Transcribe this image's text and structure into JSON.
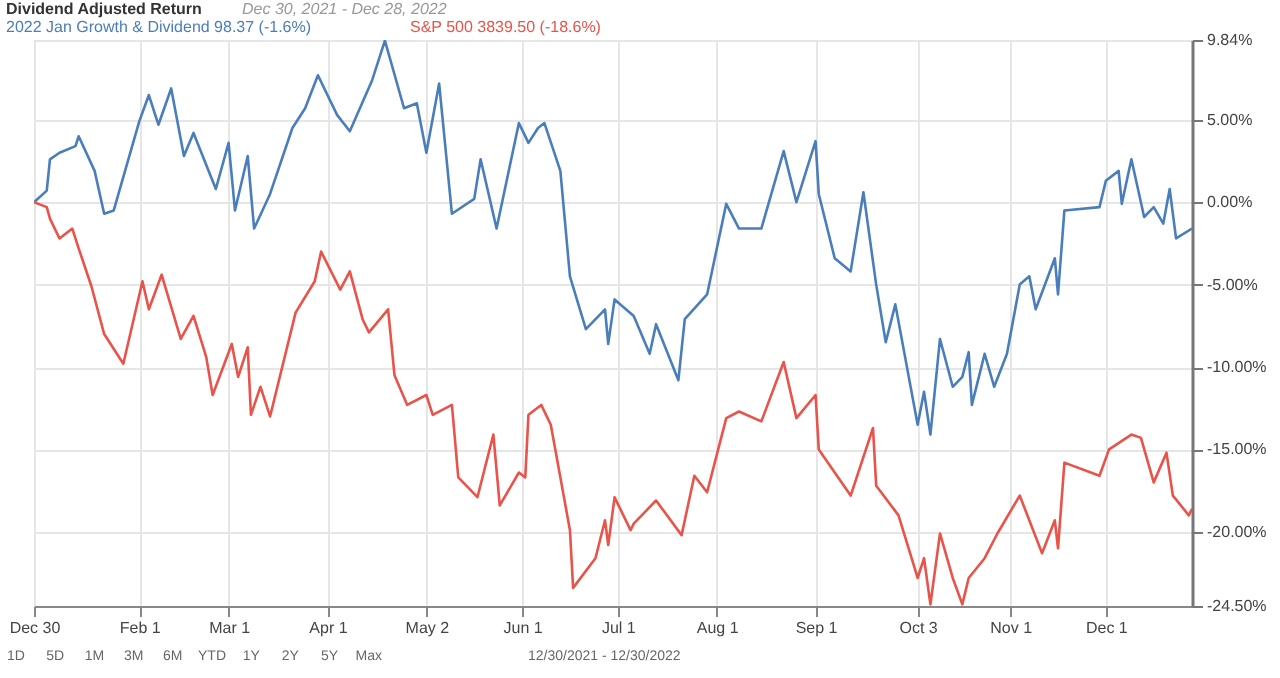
{
  "chart_data": {
    "type": "line",
    "title": "Dividend Adjusted Return",
    "subtitle": "Dec 30, 2021 - Dec 28, 2022",
    "legend": "top left",
    "grid": true,
    "xlim": [
      "2021-12-30",
      "2022-12-28"
    ],
    "xticks": [
      {
        "value": "2021-12-30",
        "label": "Dec 30"
      },
      {
        "value": "2022-02-01",
        "label": "Feb 1"
      },
      {
        "value": "2022-03-01",
        "label": "Mar 1"
      },
      {
        "value": "2022-04-01",
        "label": "Apr 1"
      },
      {
        "value": "2022-05-02",
        "label": "May 2"
      },
      {
        "value": "2022-06-01",
        "label": "Jun 1"
      },
      {
        "value": "2022-07-01",
        "label": "Jul 1"
      },
      {
        "value": "2022-08-01",
        "label": "Aug 1"
      },
      {
        "value": "2022-09-01",
        "label": "Sep 1"
      },
      {
        "value": "2022-10-03",
        "label": "Oct 3"
      },
      {
        "value": "2022-11-01",
        "label": "Nov 1"
      },
      {
        "value": "2022-12-01",
        "label": "Dec 1"
      }
    ],
    "ylim": [
      -24.5,
      9.84
    ],
    "yticks": [
      {
        "value": 9.84,
        "label": "9.84%"
      },
      {
        "value": 5,
        "label": "5.00%"
      },
      {
        "value": 0,
        "label": "0.00%"
      },
      {
        "value": -5,
        "label": "-5.00%"
      },
      {
        "value": -10,
        "label": "-10.00%"
      },
      {
        "value": -15,
        "label": "-15.00%"
      },
      {
        "value": -20,
        "label": "-20.00%"
      },
      {
        "value": -24.5,
        "label": "-24.50%"
      }
    ],
    "annotations": [
      "1D",
      "5D",
      "1M",
      "3M",
      "6M",
      "YTD",
      "1Y",
      "2Y",
      "5Y",
      "Max",
      "12/30/2021 - 12/30/2022"
    ],
    "series": [
      {
        "name": "2022 Jan Growth & Dividend 98.37 (-1.6%)",
        "color": "#4a7ebb",
        "x": [
          "2021-12-30",
          "2022-01-03",
          "2022-01-04",
          "2022-01-07",
          "2022-01-12",
          "2022-01-13",
          "2022-01-18",
          "2022-01-21",
          "2022-01-24",
          "2022-02-01",
          "2022-02-04",
          "2022-02-07",
          "2022-02-11",
          "2022-02-15",
          "2022-02-18",
          "2022-02-25",
          "2022-03-01",
          "2022-03-03",
          "2022-03-07",
          "2022-03-09",
          "2022-03-14",
          "2022-03-21",
          "2022-03-25",
          "2022-03-29",
          "2022-04-04",
          "2022-04-08",
          "2022-04-15",
          "2022-04-19",
          "2022-04-25",
          "2022-04-29",
          "2022-05-02",
          "2022-05-06",
          "2022-05-10",
          "2022-05-17",
          "2022-05-19",
          "2022-05-24",
          "2022-05-31",
          "2022-06-03",
          "2022-06-06",
          "2022-06-08",
          "2022-06-13",
          "2022-06-16",
          "2022-06-21",
          "2022-06-27",
          "2022-06-28",
          "2022-06-30",
          "2022-07-06",
          "2022-07-11",
          "2022-07-13",
          "2022-07-20",
          "2022-07-22",
          "2022-07-29",
          "2022-08-04",
          "2022-08-08",
          "2022-08-15",
          "2022-08-22",
          "2022-08-26",
          "2022-09-01",
          "2022-09-02",
          "2022-09-07",
          "2022-09-12",
          "2022-09-16",
          "2022-09-20",
          "2022-09-23",
          "2022-09-26",
          "2022-10-03",
          "2022-10-05",
          "2022-10-07",
          "2022-10-10",
          "2022-10-14",
          "2022-10-17",
          "2022-10-19",
          "2022-10-20",
          "2022-10-24",
          "2022-10-27",
          "2022-10-31",
          "2022-11-04",
          "2022-11-07",
          "2022-11-09",
          "2022-11-15",
          "2022-11-16",
          "2022-11-18",
          "2022-11-29",
          "2022-12-01",
          "2022-12-05",
          "2022-12-06",
          "2022-12-09",
          "2022-12-13",
          "2022-12-16",
          "2022-12-19",
          "2022-12-21",
          "2022-12-23",
          "2022-12-28"
        ],
        "values": [
          0.0,
          0.7,
          2.6,
          3.0,
          3.4,
          4.0,
          1.9,
          -0.7,
          -0.5,
          4.9,
          6.5,
          4.7,
          6.9,
          2.8,
          4.2,
          0.8,
          3.6,
          -0.5,
          2.8,
          -1.6,
          0.5,
          4.5,
          5.7,
          7.7,
          5.3,
          4.3,
          7.4,
          9.8,
          5.7,
          6.0,
          3.0,
          7.2,
          -0.7,
          0.2,
          2.6,
          -1.6,
          4.8,
          3.6,
          4.5,
          4.8,
          1.9,
          -4.5,
          -7.7,
          -6.5,
          -8.6,
          -5.9,
          -6.9,
          -9.2,
          -7.4,
          -10.8,
          -7.1,
          -5.6,
          -0.1,
          -1.6,
          -1.6,
          3.1,
          0.0,
          3.7,
          0.5,
          -3.4,
          -4.2,
          0.6,
          -5.0,
          -8.5,
          -6.2,
          -13.5,
          -11.5,
          -14.1,
          -8.3,
          -11.2,
          -10.6,
          -9.1,
          -12.3,
          -9.2,
          -11.2,
          -9.2,
          -5.0,
          -4.5,
          -6.5,
          -3.4,
          -5.6,
          -0.5,
          -0.3,
          1.3,
          1.9,
          -0.1,
          2.6,
          -0.9,
          -0.3,
          -1.3,
          0.8,
          -2.2,
          -1.6
        ]
      },
      {
        "name": "S&P 500 3839.50 (-18.6%)",
        "color": "#e8534a",
        "x": [
          "2021-12-30",
          "2022-01-03",
          "2022-01-04",
          "2022-01-07",
          "2022-01-11",
          "2022-01-13",
          "2022-01-17",
          "2022-01-21",
          "2022-01-27",
          "2022-02-02",
          "2022-02-04",
          "2022-02-08",
          "2022-02-14",
          "2022-02-18",
          "2022-02-22",
          "2022-02-24",
          "2022-03-02",
          "2022-03-04",
          "2022-03-07",
          "2022-03-08",
          "2022-03-11",
          "2022-03-14",
          "2022-03-22",
          "2022-03-28",
          "2022-03-30",
          "2022-04-05",
          "2022-04-08",
          "2022-04-12",
          "2022-04-14",
          "2022-04-20",
          "2022-04-22",
          "2022-04-26",
          "2022-05-02",
          "2022-05-04",
          "2022-05-10",
          "2022-05-12",
          "2022-05-18",
          "2022-05-23",
          "2022-05-25",
          "2022-05-31",
          "2022-06-02",
          "2022-06-03",
          "2022-06-07",
          "2022-06-10",
          "2022-06-16",
          "2022-06-17",
          "2022-06-24",
          "2022-06-27",
          "2022-06-28",
          "2022-06-30",
          "2022-07-05",
          "2022-07-06",
          "2022-07-13",
          "2022-07-21",
          "2022-07-25",
          "2022-07-29",
          "2022-08-04",
          "2022-08-08",
          "2022-08-15",
          "2022-08-22",
          "2022-08-26",
          "2022-09-01",
          "2022-09-02",
          "2022-09-12",
          "2022-09-19",
          "2022-09-20",
          "2022-09-27",
          "2022-10-03",
          "2022-10-05",
          "2022-10-07",
          "2022-10-10",
          "2022-10-14",
          "2022-10-17",
          "2022-10-19",
          "2022-10-24",
          "2022-10-28",
          "2022-11-04",
          "2022-11-11",
          "2022-11-15",
          "2022-11-16",
          "2022-11-18",
          "2022-11-29",
          "2022-12-02",
          "2022-12-09",
          "2022-12-12",
          "2022-12-16",
          "2022-12-20",
          "2022-12-22",
          "2022-12-27",
          "2022-12-28"
        ],
        "values": [
          0.0,
          -0.3,
          -1.0,
          -2.2,
          -1.6,
          -2.8,
          -5.1,
          -8.0,
          -9.8,
          -4.8,
          -6.5,
          -4.4,
          -8.3,
          -6.9,
          -9.4,
          -11.7,
          -8.6,
          -10.6,
          -8.8,
          -12.9,
          -11.2,
          -13.0,
          -6.7,
          -4.8,
          -3.0,
          -5.3,
          -4.2,
          -7.1,
          -7.9,
          -6.5,
          -10.5,
          -12.3,
          -11.7,
          -12.9,
          -12.3,
          -16.7,
          -17.9,
          -14.1,
          -18.4,
          -16.4,
          -16.7,
          -12.9,
          -12.3,
          -13.5,
          -19.9,
          -23.4,
          -21.6,
          -19.3,
          -20.8,
          -17.9,
          -19.9,
          -19.5,
          -18.1,
          -20.2,
          -16.6,
          -17.6,
          -13.1,
          -12.7,
          -13.3,
          -9.7,
          -13.1,
          -11.7,
          -15.0,
          -17.8,
          -13.7,
          -17.2,
          -19.0,
          -22.8,
          -21.6,
          -24.4,
          -20.1,
          -22.8,
          -24.4,
          -22.8,
          -21.6,
          -20.1,
          -17.8,
          -21.3,
          -19.3,
          -21.0,
          -15.8,
          -16.6,
          -15.0,
          -14.1,
          -14.3,
          -17.0,
          -15.2,
          -17.8,
          -19.0,
          -18.6
        ]
      }
    ]
  }
}
